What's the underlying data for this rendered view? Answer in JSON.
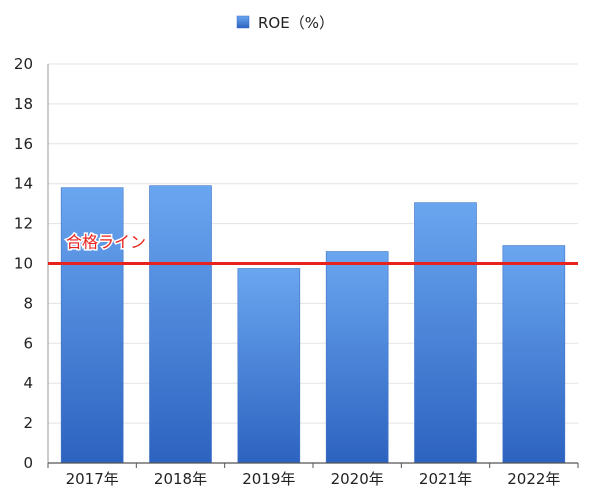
{
  "chart_data": {
    "type": "bar",
    "categories": [
      "2017年",
      "2018年",
      "2019年",
      "2020年",
      "2021年",
      "2022年"
    ],
    "series": [
      {
        "name": "ROE（%）",
        "values": [
          13.8,
          13.9,
          9.75,
          10.6,
          13.05,
          10.9
        ]
      }
    ],
    "ylim": [
      0,
      20
    ],
    "yticks": [
      "0",
      "2",
      "4",
      "6",
      "8",
      "10",
      "12",
      "14",
      "16",
      "18",
      "20"
    ],
    "grid": true,
    "legend_position": "top-center",
    "reference_line": {
      "value": 10,
      "label": "合格ライン",
      "color": "#e8221c"
    },
    "colors": {
      "bar_top": "#6aa6f0",
      "bar_bottom": "#2d63c0",
      "grid": "#e3e3e3"
    }
  }
}
